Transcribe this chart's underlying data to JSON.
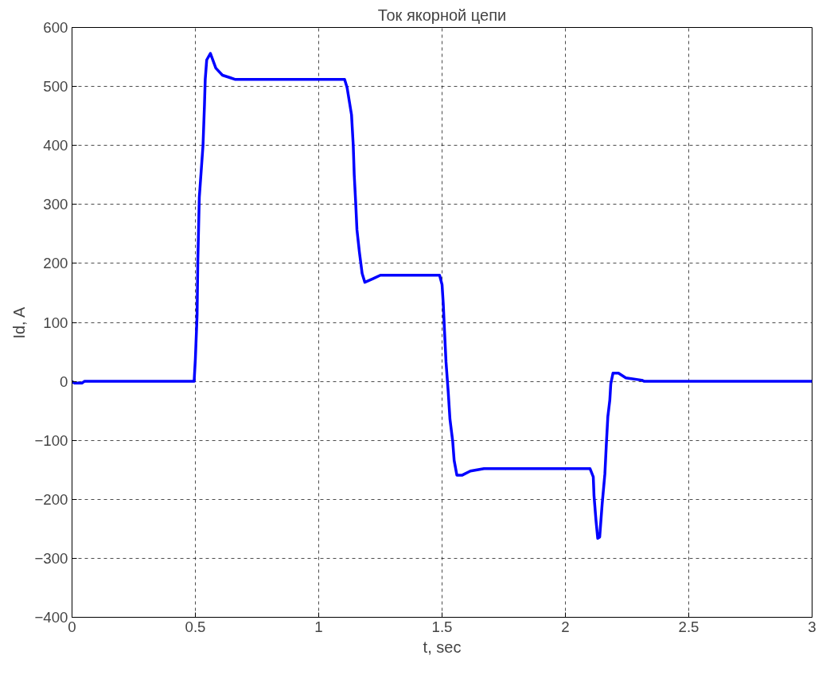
{
  "chart_data": {
    "type": "line",
    "title": "Ток якорной цепи",
    "xlabel": "t, sec",
    "ylabel": "Id, A",
    "xlim": [
      0,
      3
    ],
    "ylim": [
      -400,
      600
    ],
    "xticks": [
      0,
      0.5,
      1,
      1.5,
      2,
      2.5,
      3
    ],
    "yticks": [
      -400,
      -300,
      -200,
      -100,
      0,
      100,
      200,
      300,
      400,
      500,
      600
    ],
    "grid": true,
    "marker": "none",
    "line_style": "solid",
    "series": [
      {
        "color": "#0000ff",
        "x": [
          0,
          0.01,
          0.04,
          0.05,
          0.49,
          0.495,
          0.5,
          0.507,
          0.51,
          0.516,
          0.531,
          0.537,
          0.54,
          0.546,
          0.561,
          0.583,
          0.61,
          0.64,
          0.66,
          1.105,
          1.115,
          1.133,
          1.14,
          1.144,
          1.15,
          1.155,
          1.165,
          1.176,
          1.187,
          1.22,
          1.25,
          1.49,
          1.5,
          1.505,
          1.51,
          1.516,
          1.525,
          1.532,
          1.543,
          1.549,
          1.56,
          1.582,
          1.615,
          1.67,
          2.1,
          2.113,
          2.116,
          2.124,
          2.131,
          2.139,
          2.149,
          2.16,
          2.166,
          2.172,
          2.18,
          2.184,
          2.193,
          2.215,
          2.245,
          2.31,
          2.32,
          3
        ],
        "values": [
          0,
          -3,
          -3,
          0,
          0,
          0,
          38,
          113,
          205,
          312,
          400,
          470,
          512,
          545,
          556,
          531,
          519,
          515,
          512,
          512,
          498,
          452,
          400,
          350,
          302,
          257,
          219,
          183,
          168,
          174,
          180,
          180,
          164,
          131,
          85,
          33,
          -18,
          -64,
          -101,
          -134,
          -159,
          -159,
          -152,
          -148,
          -148,
          -162,
          -194,
          -236,
          -266,
          -264,
          -208,
          -157,
          -106,
          -60,
          -32,
          -4,
          14,
          14,
          6,
          2,
          0,
          0
        ]
      }
    ]
  }
}
